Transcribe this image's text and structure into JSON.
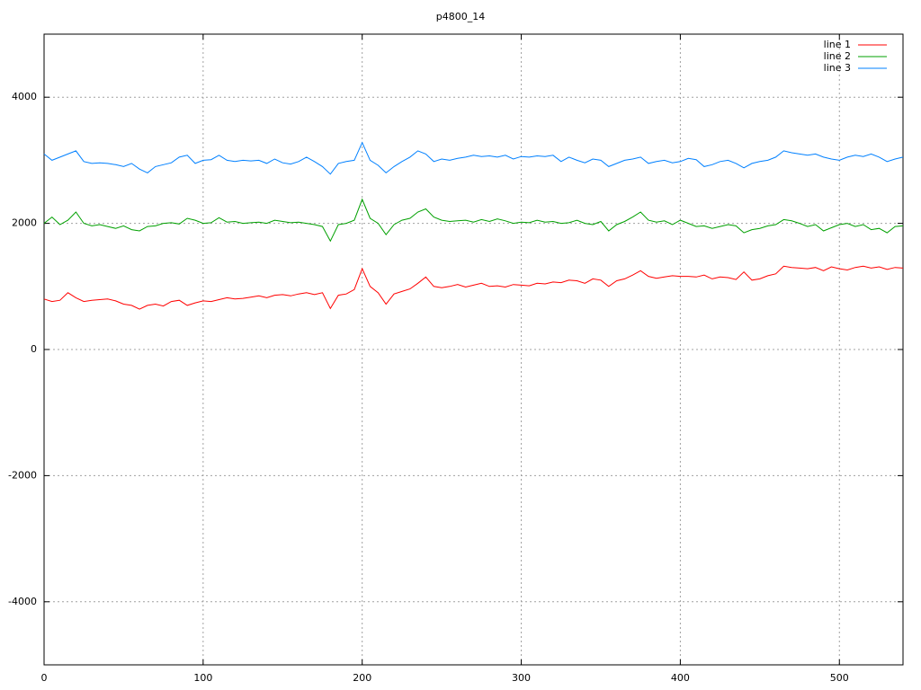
{
  "chart_data": {
    "type": "line",
    "title": "p4800_14",
    "x": [
      0,
      5,
      10,
      15,
      20,
      25,
      30,
      35,
      40,
      45,
      50,
      55,
      60,
      65,
      70,
      75,
      80,
      85,
      90,
      95,
      100,
      105,
      110,
      115,
      120,
      125,
      130,
      135,
      140,
      145,
      150,
      155,
      160,
      165,
      170,
      175,
      180,
      185,
      190,
      195,
      200,
      205,
      210,
      215,
      220,
      225,
      230,
      235,
      240,
      245,
      250,
      255,
      260,
      265,
      270,
      275,
      280,
      285,
      290,
      295,
      300,
      305,
      310,
      315,
      320,
      325,
      330,
      335,
      340,
      345,
      350,
      355,
      360,
      365,
      370,
      375,
      380,
      385,
      390,
      395,
      400,
      405,
      410,
      415,
      420,
      425,
      430,
      435,
      440,
      445,
      450,
      455,
      460,
      465,
      470,
      475,
      480,
      485,
      490,
      495,
      500,
      505,
      510,
      515,
      520,
      525,
      530,
      535,
      540
    ],
    "series": [
      {
        "name": "line 1",
        "color": "#ff0000",
        "values": [
          800,
          760,
          780,
          900,
          820,
          760,
          780,
          790,
          800,
          770,
          720,
          700,
          640,
          700,
          720,
          690,
          760,
          780,
          700,
          740,
          770,
          760,
          790,
          820,
          800,
          810,
          830,
          850,
          820,
          860,
          870,
          850,
          880,
          900,
          870,
          900,
          650,
          860,
          880,
          950,
          1280,
          1000,
          900,
          720,
          880,
          920,
          960,
          1050,
          1150,
          1000,
          980,
          1000,
          1030,
          990,
          1020,
          1050,
          1000,
          1010,
          990,
          1030,
          1020,
          1010,
          1050,
          1040,
          1070,
          1060,
          1100,
          1090,
          1050,
          1120,
          1100,
          1000,
          1090,
          1120,
          1180,
          1250,
          1160,
          1130,
          1150,
          1170,
          1160,
          1160,
          1150,
          1180,
          1120,
          1150,
          1140,
          1110,
          1230,
          1100,
          1120,
          1170,
          1200,
          1320,
          1300,
          1290,
          1280,
          1300,
          1250,
          1310,
          1280,
          1260,
          1300,
          1320,
          1290,
          1310,
          1270,
          1300,
          1290
        ]
      },
      {
        "name": "line 2",
        "color": "#00a000",
        "values": [
          2000,
          2100,
          1980,
          2050,
          2180,
          2000,
          1960,
          1980,
          1950,
          1920,
          1960,
          1900,
          1880,
          1950,
          1960,
          2000,
          2010,
          1990,
          2080,
          2050,
          2000,
          2010,
          2090,
          2020,
          2030,
          2000,
          2010,
          2020,
          2000,
          2050,
          2030,
          2010,
          2020,
          2000,
          1980,
          1950,
          1720,
          1980,
          2000,
          2050,
          2380,
          2080,
          2000,
          1820,
          1980,
          2050,
          2080,
          2180,
          2230,
          2100,
          2050,
          2030,
          2040,
          2050,
          2020,
          2060,
          2030,
          2070,
          2040,
          2000,
          2020,
          2010,
          2050,
          2020,
          2030,
          2000,
          2010,
          2050,
          2000,
          1980,
          2030,
          1880,
          1980,
          2030,
          2100,
          2180,
          2050,
          2020,
          2040,
          1980,
          2050,
          2000,
          1950,
          1960,
          1920,
          1950,
          1980,
          1960,
          1850,
          1900,
          1920,
          1960,
          1980,
          2060,
          2040,
          2000,
          1950,
          1980,
          1880,
          1930,
          1980,
          2000,
          1950,
          1980,
          1900,
          1920,
          1850,
          1950,
          1960
        ]
      },
      {
        "name": "line 3",
        "color": "#0080ff",
        "values": [
          3100,
          3000,
          3050,
          3100,
          3150,
          2980,
          2950,
          2960,
          2950,
          2930,
          2900,
          2950,
          2860,
          2800,
          2900,
          2930,
          2960,
          3050,
          3080,
          2950,
          3000,
          3010,
          3080,
          3000,
          2980,
          3000,
          2990,
          3000,
          2950,
          3020,
          2960,
          2940,
          2980,
          3050,
          2980,
          2900,
          2780,
          2950,
          2980,
          3000,
          3280,
          3000,
          2920,
          2800,
          2900,
          2980,
          3050,
          3150,
          3100,
          2980,
          3020,
          3000,
          3030,
          3050,
          3080,
          3060,
          3070,
          3050,
          3080,
          3020,
          3060,
          3050,
          3070,
          3060,
          3080,
          2980,
          3050,
          3000,
          2960,
          3020,
          3000,
          2900,
          2950,
          3000,
          3020,
          3050,
          2950,
          2980,
          3000,
          2960,
          2980,
          3030,
          3010,
          2900,
          2930,
          2980,
          3000,
          2950,
          2880,
          2950,
          2980,
          3000,
          3050,
          3150,
          3120,
          3100,
          3080,
          3100,
          3050,
          3020,
          3000,
          3050,
          3080,
          3060,
          3100,
          3050,
          2980,
          3020,
          3050
        ]
      }
    ],
    "xlim": [
      0,
      540
    ],
    "xticks": [
      0,
      100,
      200,
      300,
      400,
      500
    ],
    "ylim": [
      -5000,
      5000
    ],
    "yticks": [
      -4000,
      -2000,
      0,
      2000,
      4000
    ],
    "grid": true,
    "legend": "top-right"
  }
}
